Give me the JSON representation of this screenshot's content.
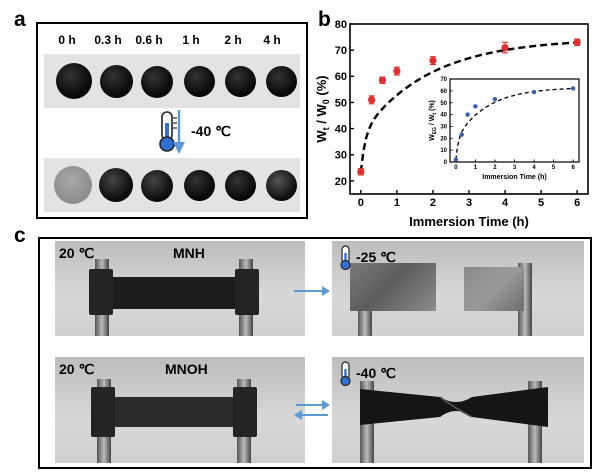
{
  "panel_a": {
    "letter": "a",
    "times": [
      "0 h",
      "0.3 h",
      "0.6 h",
      "1 h",
      "2 h",
      "4 h"
    ],
    "temperature": "-40 ℃",
    "icons": [
      "thermometer-icon",
      "down-arrow-icon"
    ]
  },
  "panel_b": {
    "letter": "b",
    "chart_data": [
      {
        "type": "scatter",
        "xlabel": "Immersion Time (h)",
        "ylabel": "Wt / W0 (%)",
        "ylabel_main": "W",
        "ylabel_sub1": "t",
        "ylabel_mid": " / W",
        "ylabel_sub2": "0",
        "ylabel_end": " (%)",
        "xlim": [
          -0.3,
          6.3
        ],
        "ylim": [
          15,
          80
        ],
        "xticks": [
          "0",
          "1",
          "2",
          "3",
          "4",
          "5",
          "6"
        ],
        "yticks": [
          "20",
          "30",
          "40",
          "50",
          "60",
          "70",
          "80"
        ],
        "x": [
          0,
          0.3,
          0.6,
          1,
          2,
          4,
          6
        ],
        "y": [
          23.5,
          51,
          58.5,
          62,
          66,
          71,
          73
        ],
        "error": [
          1.2,
          1.5,
          1.2,
          1.5,
          1.5,
          2,
          1.2
        ],
        "point_color": "#e03030",
        "fit_color": "#000000"
      },
      {
        "type": "scatter",
        "xlabel": "Immersion Time (h)",
        "ylabel_main": "W",
        "ylabel_sub1": "EG",
        "ylabel_mid": " / W",
        "ylabel_sub2": "t",
        "ylabel_end": " (%)",
        "xlim": [
          -0.3,
          6.3
        ],
        "ylim": [
          0,
          70
        ],
        "xticks": [
          "0",
          "1",
          "2",
          "3",
          "4",
          "5",
          "6"
        ],
        "yticks": [
          "0",
          "10",
          "20",
          "30",
          "40",
          "50",
          "60",
          "70"
        ],
        "x": [
          0,
          0.3,
          0.6,
          1,
          2,
          4,
          6
        ],
        "y": [
          2,
          23,
          40,
          47,
          53,
          59,
          62
        ],
        "point_color": "#3a5fb0",
        "fit_color": "#000000"
      }
    ]
  },
  "panel_c": {
    "letter": "c",
    "rows": [
      {
        "temp_left": "20 ℃",
        "material": "MNH",
        "temp_right": "-25 ℃",
        "arrow": "right-arrow-icon"
      },
      {
        "temp_left": "20 ℃",
        "material": "MNOH",
        "temp_right": "-40 ℃",
        "arrow": "bidirectional-arrow-icon"
      }
    ]
  }
}
